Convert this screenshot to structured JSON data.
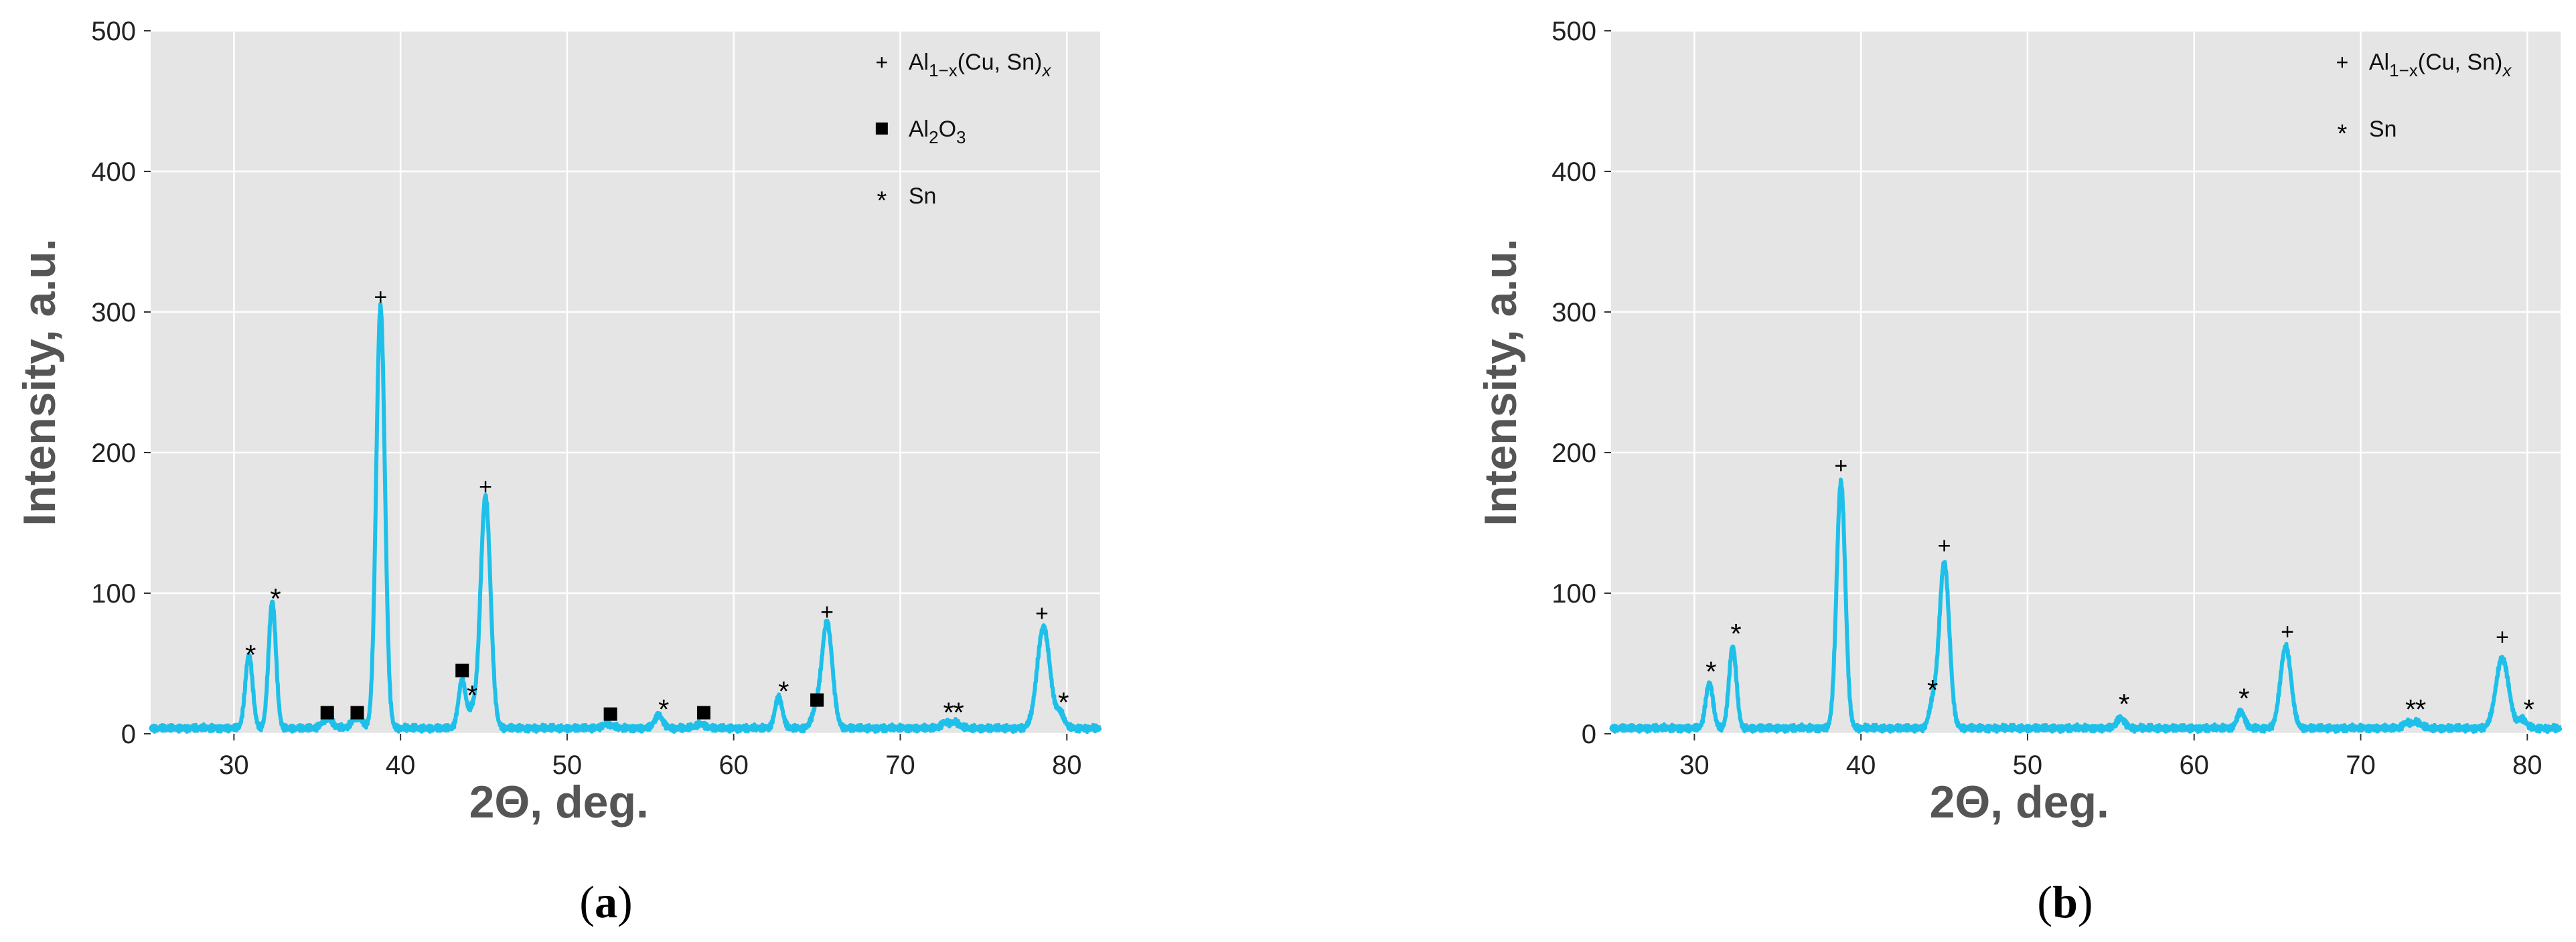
{
  "chart_data": [
    {
      "type": "line",
      "panel_label": "(a)",
      "xlabel": "2Θ, deg.",
      "ylabel": "Intensity, a.u.",
      "xlim": [
        25,
        82
      ],
      "ylim": [
        0,
        500
      ],
      "xticks": [
        30,
        40,
        50,
        60,
        70,
        80
      ],
      "yticks": [
        0,
        100,
        200,
        300,
        400,
        500
      ],
      "grid": true,
      "legend_position": "top-right",
      "line_color": "#1ec0ea",
      "baseline": 4,
      "legend": [
        {
          "symbol": "+",
          "label": "Al1−x(Cu, Sn)x"
        },
        {
          "symbol": "■",
          "label": "Al2O3"
        },
        {
          "symbol": "*",
          "label": "Sn"
        }
      ],
      "peaks": [
        {
          "x": 30.9,
          "y": 52,
          "w": 0.22
        },
        {
          "x": 32.3,
          "y": 90,
          "w": 0.22
        },
        {
          "x": 35.6,
          "y": 7,
          "w": 0.3
        },
        {
          "x": 37.4,
          "y": 8,
          "w": 0.3
        },
        {
          "x": 38.8,
          "y": 300,
          "w": 0.26
        },
        {
          "x": 43.7,
          "y": 34,
          "w": 0.22
        },
        {
          "x": 44.3,
          "y": 12,
          "w": 0.2
        },
        {
          "x": 45.1,
          "y": 165,
          "w": 0.3
        },
        {
          "x": 52.4,
          "y": 3,
          "w": 0.3
        },
        {
          "x": 55.5,
          "y": 9,
          "w": 0.25
        },
        {
          "x": 58.0,
          "y": 3,
          "w": 0.3
        },
        {
          "x": 62.7,
          "y": 22,
          "w": 0.22
        },
        {
          "x": 64.9,
          "y": 10,
          "w": 0.25
        },
        {
          "x": 65.6,
          "y": 75,
          "w": 0.32
        },
        {
          "x": 72.7,
          "y": 4,
          "w": 0.25
        },
        {
          "x": 73.3,
          "y": 4,
          "w": 0.25
        },
        {
          "x": 78.6,
          "y": 72,
          "w": 0.38
        },
        {
          "x": 79.6,
          "y": 10,
          "w": 0.25
        }
      ],
      "markers": [
        {
          "x": 31.0,
          "y": 57,
          "symbol": "*"
        },
        {
          "x": 32.5,
          "y": 97,
          "symbol": "*"
        },
        {
          "x": 35.6,
          "y": 15,
          "symbol": "■"
        },
        {
          "x": 37.4,
          "y": 15,
          "symbol": "■"
        },
        {
          "x": 38.8,
          "y": 310,
          "symbol": "+"
        },
        {
          "x": 43.7,
          "y": 45,
          "symbol": "■"
        },
        {
          "x": 44.3,
          "y": 28,
          "symbol": "*"
        },
        {
          "x": 45.1,
          "y": 175,
          "symbol": "+"
        },
        {
          "x": 52.6,
          "y": 14,
          "symbol": "■"
        },
        {
          "x": 55.8,
          "y": 18,
          "symbol": "*"
        },
        {
          "x": 58.2,
          "y": 15,
          "symbol": "■"
        },
        {
          "x": 63.0,
          "y": 31,
          "symbol": "*"
        },
        {
          "x": 65.0,
          "y": 24,
          "symbol": "■"
        },
        {
          "x": 65.6,
          "y": 86,
          "symbol": "+"
        },
        {
          "x": 72.9,
          "y": 16,
          "symbol": "*"
        },
        {
          "x": 73.5,
          "y": 16,
          "symbol": "*"
        },
        {
          "x": 78.5,
          "y": 85,
          "symbol": "+"
        },
        {
          "x": 79.8,
          "y": 23,
          "symbol": "*"
        }
      ]
    },
    {
      "type": "line",
      "panel_label": "(b)",
      "xlabel": "2Θ, deg.",
      "ylabel": "Intensity, a.u.",
      "xlim": [
        25,
        82
      ],
      "ylim": [
        0,
        500
      ],
      "xticks": [
        30,
        40,
        50,
        60,
        70,
        80
      ],
      "yticks": [
        0,
        100,
        200,
        300,
        400,
        500
      ],
      "grid": true,
      "legend_position": "top-right",
      "line_color": "#1ec0ea",
      "baseline": 4,
      "legend": [
        {
          "symbol": "+",
          "label": "Al1−x(Cu, Sn)x"
        },
        {
          "symbol": "*",
          "label": "Sn"
        }
      ],
      "peaks": [
        {
          "x": 30.9,
          "y": 32,
          "w": 0.22
        },
        {
          "x": 32.3,
          "y": 58,
          "w": 0.22
        },
        {
          "x": 38.8,
          "y": 175,
          "w": 0.26
        },
        {
          "x": 44.3,
          "y": 16,
          "w": 0.22
        },
        {
          "x": 45.0,
          "y": 118,
          "w": 0.3
        },
        {
          "x": 55.6,
          "y": 7,
          "w": 0.25
        },
        {
          "x": 62.8,
          "y": 12,
          "w": 0.22
        },
        {
          "x": 65.5,
          "y": 58,
          "w": 0.32
        },
        {
          "x": 72.8,
          "y": 4,
          "w": 0.25
        },
        {
          "x": 73.4,
          "y": 4,
          "w": 0.25
        },
        {
          "x": 78.5,
          "y": 50,
          "w": 0.38
        },
        {
          "x": 79.7,
          "y": 6,
          "w": 0.25
        }
      ],
      "markers": [
        {
          "x": 31.0,
          "y": 45,
          "symbol": "*"
        },
        {
          "x": 32.5,
          "y": 72,
          "symbol": "*"
        },
        {
          "x": 38.8,
          "y": 190,
          "symbol": "+"
        },
        {
          "x": 44.3,
          "y": 32,
          "symbol": "*"
        },
        {
          "x": 45.0,
          "y": 133,
          "symbol": "+"
        },
        {
          "x": 55.8,
          "y": 22,
          "symbol": "*"
        },
        {
          "x": 63.0,
          "y": 26,
          "symbol": "*"
        },
        {
          "x": 65.6,
          "y": 72,
          "symbol": "+"
        },
        {
          "x": 73.0,
          "y": 18,
          "symbol": "*"
        },
        {
          "x": 73.6,
          "y": 18,
          "symbol": "*"
        },
        {
          "x": 78.5,
          "y": 68,
          "symbol": "+"
        },
        {
          "x": 80.1,
          "y": 18,
          "symbol": "*"
        }
      ]
    }
  ]
}
